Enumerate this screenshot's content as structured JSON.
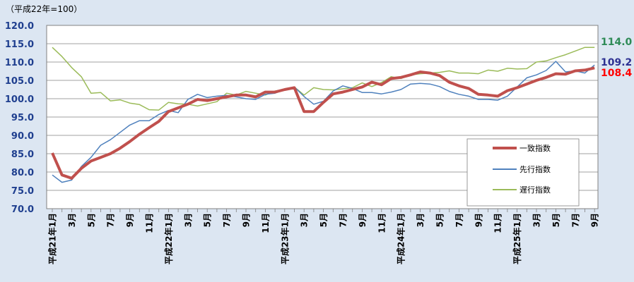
{
  "unit_note": "（平成22年=100）",
  "chart_data": {
    "type": "line",
    "ylim": [
      70,
      120
    ],
    "yticks": [
      "70.0",
      "75.0",
      "80.0",
      "85.0",
      "90.0",
      "95.0",
      "100.0",
      "105.0",
      "110.0",
      "115.0",
      "120.0"
    ],
    "grid": "horizontal",
    "x_labels": [
      "平成21年1月",
      "",
      "3月",
      "",
      "5月",
      "",
      "7月",
      "",
      "9月",
      "",
      "11月",
      "",
      "平成22年1月",
      "",
      "3月",
      "",
      "5月",
      "",
      "7月",
      "",
      "9月",
      "",
      "11月",
      "",
      "平成23年1月",
      "",
      "3月",
      "",
      "5月",
      "",
      "7月",
      "",
      "9月",
      "",
      "11月",
      "",
      "平成24年1月",
      "",
      "3月",
      "",
      "5月",
      "",
      "7月",
      "",
      "9月",
      "",
      "11月",
      "",
      "平成25年1月",
      "",
      "3月",
      "",
      "5月",
      "",
      "7月",
      "",
      "9月"
    ],
    "legend_position": "right",
    "series": [
      {
        "name": "一致指数",
        "color": "#c0504d",
        "width": 4,
        "end_label": "108.4",
        "end_label_color": "#ff0000",
        "values": [
          85.2,
          79.2,
          78.3,
          81.0,
          83.0,
          84.0,
          85.0,
          86.5,
          88.3,
          90.3,
          92.1,
          93.8,
          96.5,
          97.5,
          98.5,
          99.8,
          99.5,
          100.0,
          100.5,
          101.0,
          101.0,
          100.5,
          101.8,
          101.8,
          102.5,
          103.0,
          96.5,
          96.5,
          99.0,
          101.3,
          101.8,
          102.5,
          103.2,
          104.5,
          103.8,
          105.5,
          105.8,
          106.5,
          107.3,
          107.0,
          106.3,
          104.5,
          103.5,
          102.8,
          101.2,
          101.0,
          100.7,
          102.2,
          103.0,
          104.0,
          105.0,
          105.8,
          106.8,
          106.7,
          107.6,
          107.8,
          108.4
        ]
      },
      {
        "name": "先行指数",
        "color": "#4f81bd",
        "width": 1.5,
        "end_label": "109.2",
        "end_label_color": "#2e3192",
        "values": [
          79.2,
          77.2,
          77.8,
          81.5,
          84.0,
          87.3,
          88.8,
          90.8,
          92.8,
          94.0,
          94.0,
          95.7,
          96.8,
          96.2,
          99.8,
          101.2,
          100.3,
          100.7,
          100.9,
          100.5,
          100.0,
          99.8,
          101.2,
          101.5,
          102.5,
          103.2,
          100.6,
          98.5,
          99.3,
          102.1,
          103.5,
          102.8,
          101.7,
          101.7,
          101.3,
          101.8,
          102.5,
          104.0,
          104.2,
          104.0,
          103.3,
          102.0,
          101.2,
          100.7,
          99.8,
          99.8,
          99.6,
          100.7,
          103.2,
          105.7,
          106.5,
          107.7,
          110.2,
          107.3,
          107.6,
          107.0,
          109.2
        ]
      },
      {
        "name": "遅行指数",
        "color": "#9bbb59",
        "width": 1.5,
        "end_label": "114.0",
        "end_label_color": "#2e8b57",
        "values": [
          114.0,
          111.5,
          108.5,
          106.0,
          101.5,
          101.7,
          99.4,
          99.7,
          98.8,
          98.4,
          97.0,
          96.9,
          99.0,
          98.6,
          98.5,
          98.0,
          98.6,
          99.2,
          101.5,
          101.0,
          102.0,
          101.5,
          101.0,
          102.1,
          102.5,
          103.2,
          101.0,
          103.0,
          102.5,
          102.4,
          102.7,
          103.0,
          104.3,
          103.3,
          104.4,
          106.0,
          105.5,
          106.5,
          106.8,
          107.0,
          107.2,
          107.6,
          107.0,
          107.0,
          106.8,
          107.8,
          107.5,
          108.3,
          108.1,
          108.2,
          110.0,
          110.3,
          111.2,
          112.0,
          113.0,
          114.0,
          114.0
        ]
      }
    ]
  }
}
